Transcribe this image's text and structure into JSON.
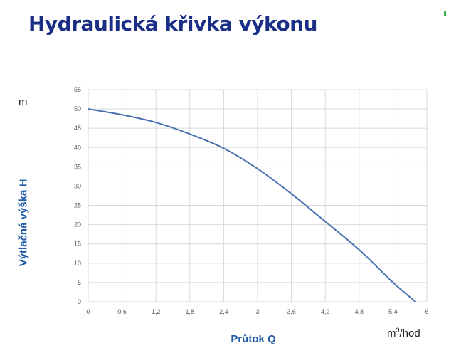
{
  "title": "Hydraulická křivka výkonu",
  "colors": {
    "title": "#1a2e86",
    "axis_title": "#1e5aa6",
    "series": "#4a72b0",
    "grid": "#d9d9d9",
    "accent_mark": "#3cb04a"
  },
  "chart_data": {
    "type": "line",
    "title": "",
    "xlabel": "Průtok Q",
    "xunit_base": "m",
    "xunit_sup": "3",
    "xunit_rest": "/hod",
    "ylabel": "Výtlačná výška H",
    "yunit": "m",
    "xlim": [
      0,
      6
    ],
    "ylim": [
      0,
      55
    ],
    "xticks": [
      0,
      0.6,
      1.2,
      1.8,
      2.4,
      3,
      3.6,
      4.2,
      4.8,
      5.4,
      6
    ],
    "xtick_labels": [
      "0",
      "0,6",
      "1,2",
      "1,8",
      "2,4",
      "3",
      "3,6",
      "4,2",
      "4,8",
      "5,4",
      "6"
    ],
    "yticks": [
      0,
      5,
      10,
      15,
      20,
      25,
      30,
      35,
      40,
      45,
      50,
      55
    ],
    "ytick_labels": [
      "0",
      "5",
      "10",
      "15",
      "20",
      "25",
      "30",
      "35",
      "40",
      "45",
      "50",
      "55"
    ],
    "grid": true,
    "legend": "none",
    "series": [
      {
        "x": [
          0,
          0.6,
          1.2,
          1.8,
          2.4,
          3.0,
          3.6,
          4.2,
          4.8,
          5.4,
          5.8
        ],
        "y": [
          50,
          48.5,
          46.5,
          43.5,
          39.8,
          34.5,
          28,
          20.8,
          13.5,
          5,
          0
        ]
      }
    ]
  }
}
